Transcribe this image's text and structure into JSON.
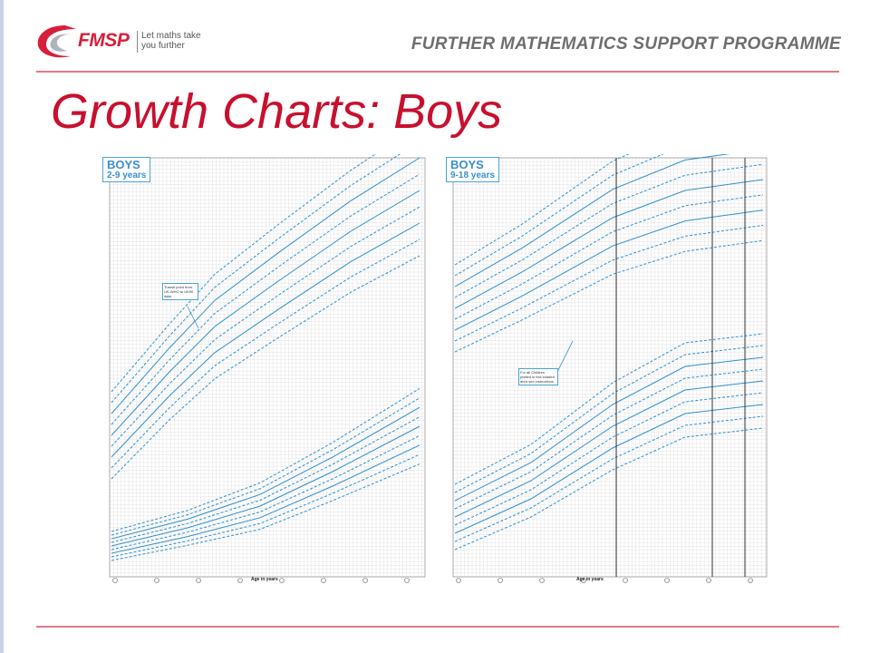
{
  "header": {
    "logo_text": "FMSP",
    "logo_tagline": "Let maths take you further",
    "organization": "FURTHER MATHEMATICS SUPPORT PROGRAMME"
  },
  "slide": {
    "title": "Growth Charts: Boys"
  },
  "charts": [
    {
      "badge_title": "BOYS",
      "badge_subtitle": "2-9 years",
      "x_axis_label": "Age in years",
      "note": "Transit point from UK-WHO to UK90 data."
    },
    {
      "badge_title": "BOYS",
      "badge_subtitle": "9-18 years",
      "x_axis_label": "Age in years",
      "note": "For all Children plotted in this shaded area see instructions."
    }
  ],
  "colors": {
    "accent": "#c8102e",
    "rule": "#e07a86",
    "curve": "#2f8fd0",
    "grid": "#e2e2e2"
  }
}
